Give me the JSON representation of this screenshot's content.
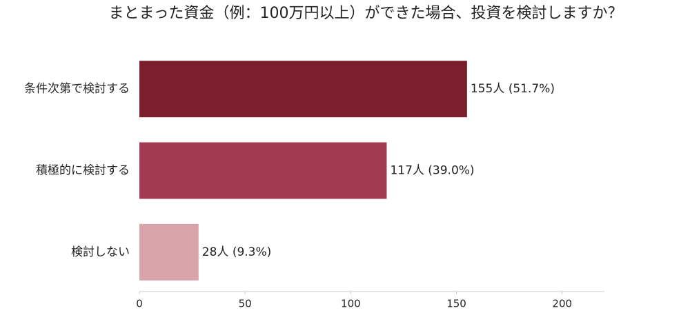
{
  "chart_data": {
    "type": "barh",
    "title": "まとまった資金（例：100万円以上）ができた場合、投資を検討しますか？",
    "categories": [
      "条件次第で検討する",
      "積極的に検討する",
      "検討しない"
    ],
    "values": [
      155,
      117,
      28
    ],
    "value_labels": [
      "155人 (51.7%)",
      "117人 (39.0%)",
      "28人 (9.3%)"
    ],
    "colors": [
      "#7b1f2e",
      "#a33a52",
      "#d9a3aa"
    ],
    "xlim": [
      0,
      220
    ],
    "xticks": [
      0,
      50,
      100,
      150,
      200
    ],
    "grid": false
  }
}
